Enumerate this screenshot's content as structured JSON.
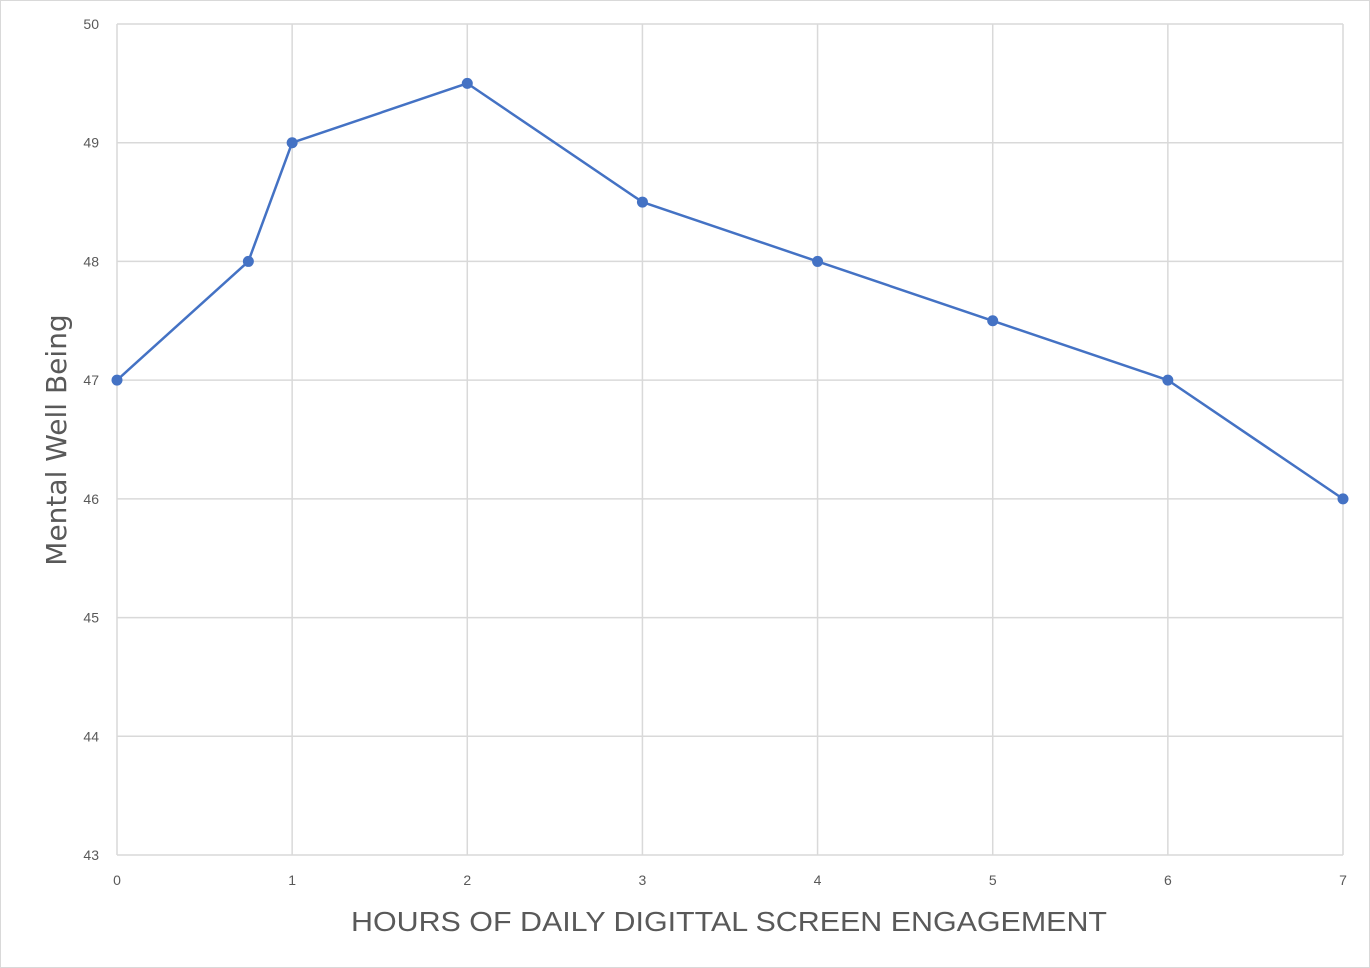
{
  "chart_data": {
    "type": "line",
    "title": "",
    "xlabel": "HOURS OF DAILY DIGITTAL SCREEN ENGAGEMENT",
    "ylabel": "Mental Well Being",
    "xlim": [
      0,
      7
    ],
    "ylim": [
      43,
      50
    ],
    "x_ticks": [
      0,
      1,
      2,
      3,
      4,
      5,
      6,
      7
    ],
    "y_ticks": [
      43,
      44,
      45,
      46,
      47,
      48,
      49,
      50
    ],
    "grid": true,
    "legend": null,
    "series": [
      {
        "name": "Mental Well Being",
        "color": "#4472c4",
        "marker": "circle",
        "x": [
          0,
          0.75,
          1,
          2,
          3,
          4,
          5,
          6,
          7
        ],
        "values": [
          47,
          48,
          49,
          49.5,
          48.5,
          48,
          47.5,
          47,
          46
        ]
      }
    ]
  }
}
